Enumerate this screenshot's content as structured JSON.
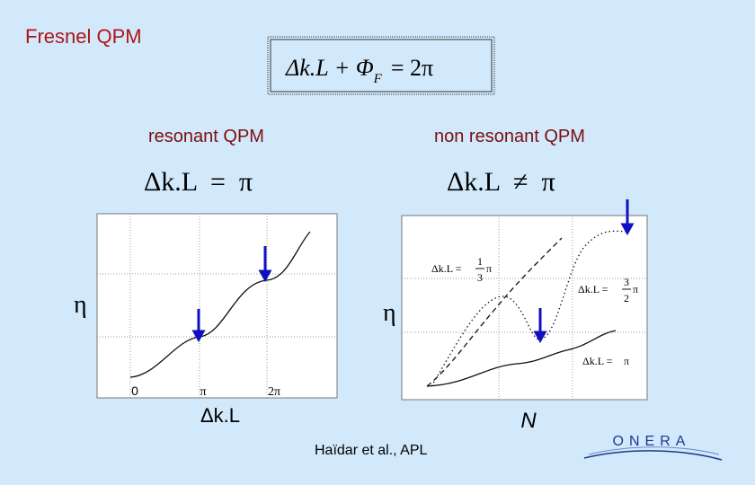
{
  "header": {
    "title": "Fresnel QPM"
  },
  "formula": {
    "main": "Δk.L + Φ",
    "sub": "F",
    "rhs": "= 2π"
  },
  "left": {
    "heading": "resonant QPM",
    "condition": "Δk.L  =  π",
    "y_label": "η",
    "x_label": "Δk.L",
    "ticks": [
      "0",
      "π",
      "2π"
    ]
  },
  "right": {
    "heading": "non resonant QPM",
    "condition": "Δk.L  ≠  π",
    "y_label": "η",
    "x_label": "N",
    "curves": [
      {
        "lhs": "Δk.L =",
        "num": "1",
        "den": "3",
        "rhs": "π"
      },
      {
        "lhs": "Δk.L =",
        "num": "3",
        "den": "2",
        "rhs": "π"
      },
      {
        "lhs": "Δk.L =",
        "rhs": "π"
      }
    ]
  },
  "footer": {
    "citation": "Haïdar et al., APL",
    "logo": "ONERA"
  }
}
